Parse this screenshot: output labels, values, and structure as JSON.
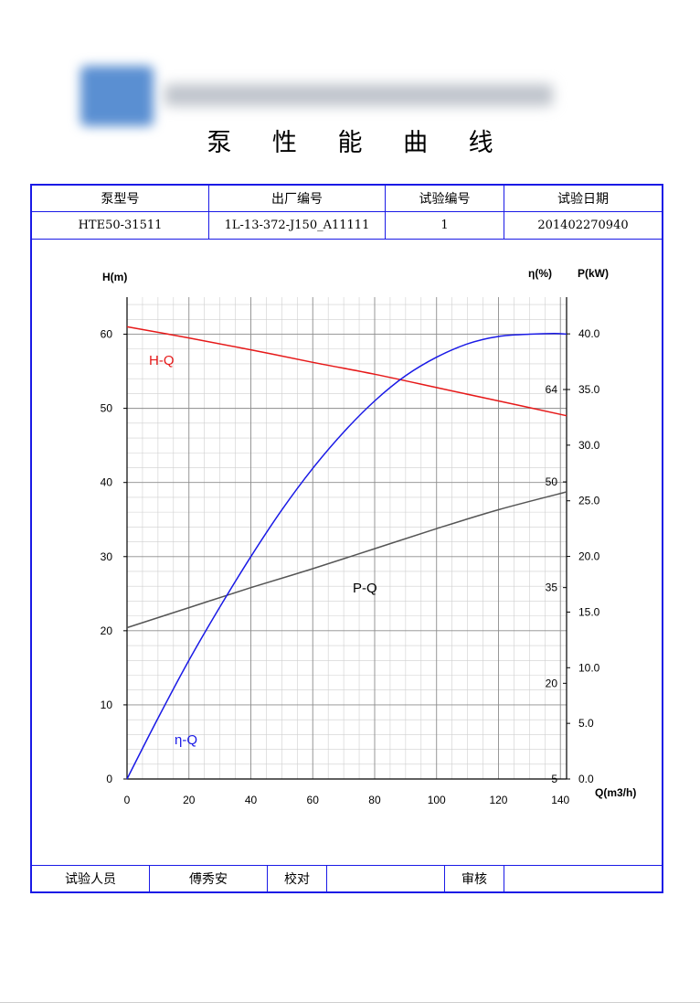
{
  "document": {
    "title": "泵 性 能 曲 线"
  },
  "info_table": {
    "headers": [
      "泵型号",
      "出厂编号",
      "试验编号",
      "试验日期"
    ],
    "values": [
      "HTE50-31511",
      "1L-13-372-J150_A11111",
      "1",
      "201402270940"
    ]
  },
  "signature_table": {
    "tester_label": "试验人员",
    "tester_name": "傅秀安",
    "check_label": "校对",
    "check_name": "",
    "review_label": "审核",
    "review_name": ""
  },
  "chart_data": {
    "type": "line",
    "xlabel": "Q(m3/h)",
    "xlim": [
      0,
      142
    ],
    "xticks": [
      0,
      20,
      40,
      60,
      80,
      100,
      120,
      140
    ],
    "left_axis": {
      "label": "H(m)",
      "lim": [
        0,
        65
      ],
      "ticks": [
        0,
        10,
        20,
        30,
        40,
        50,
        60
      ]
    },
    "right_axis": {
      "label": "P(kW)",
      "lim": [
        0,
        43.3
      ],
      "ticks": [
        "0.0",
        "5.0",
        "10.0",
        "15.0",
        "20.0",
        "25.0",
        "30.0",
        "35.0",
        "40.0"
      ]
    },
    "eta_axis": {
      "label": "η(%)",
      "ticks": [
        5,
        20,
        35,
        50,
        64
      ],
      "tick_p_values": [
        0,
        8.6,
        17.2,
        26.7,
        35.0
      ]
    },
    "grid": true,
    "series": [
      {
        "name": "H-Q",
        "axis": "left",
        "color": "#e61919",
        "x": [
          0,
          20,
          40,
          60,
          80,
          100,
          120,
          142
        ],
        "y": [
          61.0,
          59.5,
          57.9,
          56.2,
          54.6,
          52.8,
          51.0,
          49.0
        ]
      },
      {
        "name": "P-Q",
        "axis": "right",
        "color": "#555555",
        "x": [
          0,
          20,
          40,
          60,
          80,
          100,
          120,
          142
        ],
        "y": [
          13.6,
          15.4,
          17.2,
          18.9,
          20.7,
          22.5,
          24.2,
          25.8
        ]
      },
      {
        "name": "η-Q",
        "axis": "left",
        "color": "#1a1ae6",
        "x": [
          0,
          10,
          20,
          30,
          40,
          50,
          60,
          70,
          80,
          90,
          100,
          110,
          120,
          130,
          138,
          142
        ],
        "y": [
          0,
          8.2,
          16.0,
          23.2,
          30.0,
          36.3,
          41.9,
          46.8,
          51.0,
          54.4,
          56.9,
          58.7,
          59.7,
          60.0,
          60.1,
          60.0
        ]
      }
    ]
  }
}
